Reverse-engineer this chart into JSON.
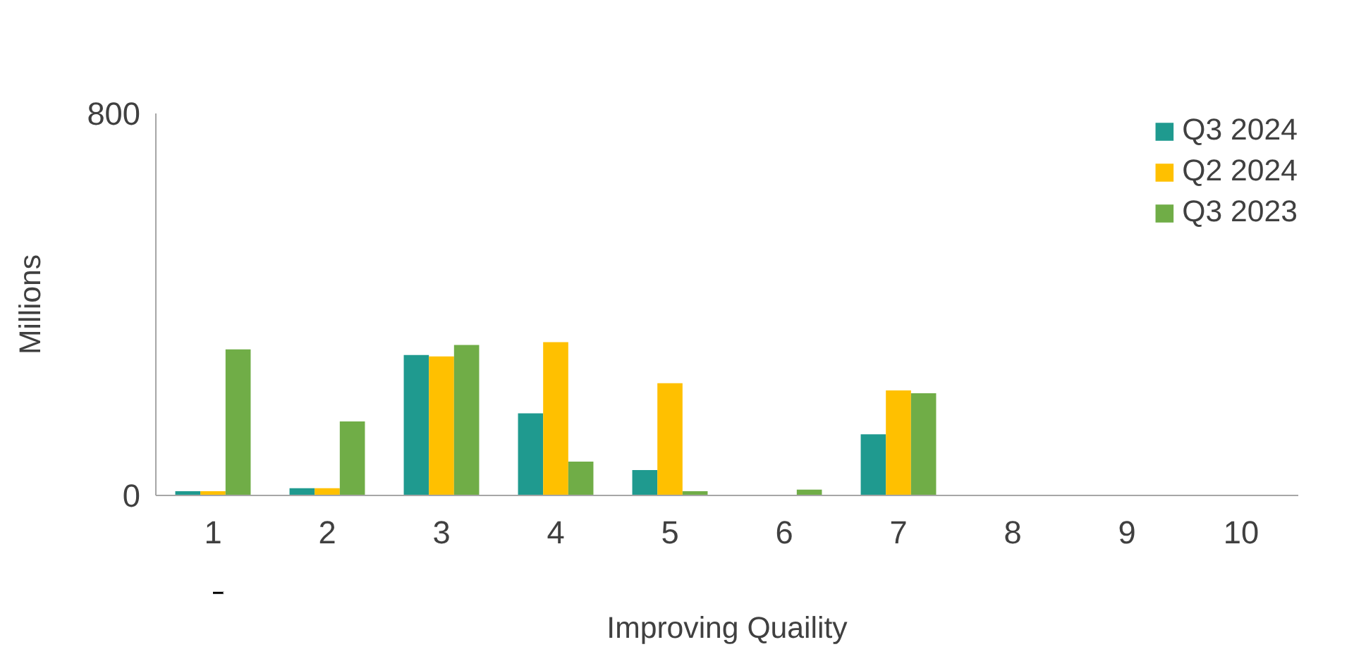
{
  "chart_data": {
    "type": "bar",
    "xlabel": "Improving Quaility",
    "ylabel": "Millions",
    "categories": [
      "1",
      "2",
      "3",
      "4",
      "5",
      "6",
      "7",
      "8",
      "9",
      "10"
    ],
    "series": [
      {
        "name": "Q3 2024",
        "color": "#1f9a8f",
        "values": [
          9,
          15,
          294,
          172,
          53,
          0,
          128,
          0,
          0,
          0
        ]
      },
      {
        "name": "Q2 2024",
        "color": "#ffc000",
        "values": [
          9,
          15,
          291,
          321,
          235,
          0,
          220,
          0,
          0,
          0
        ]
      },
      {
        "name": "Q3 2023",
        "color": "#70ad47",
        "values": [
          306,
          155,
          315,
          71,
          9,
          12,
          214,
          0,
          0,
          0
        ]
      }
    ],
    "ylim": [
      0,
      800
    ],
    "yticks": [
      0,
      800
    ],
    "grid": false,
    "legend": "top right"
  }
}
